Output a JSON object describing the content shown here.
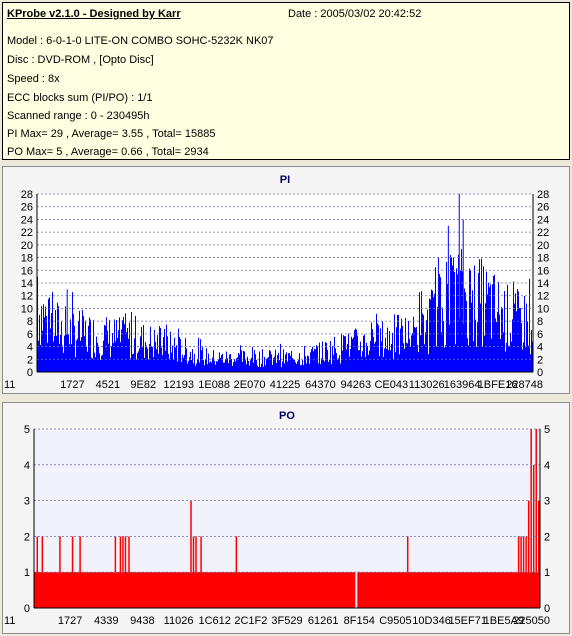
{
  "header": {
    "title": "KProbe v2.1.0 - Designed by Karr",
    "date": "Date : 2005/03/02 20:42:52",
    "lines": [
      "Model : 6-0-1-0 LITE-ON COMBO SOHC-5232K NK07",
      "Disc : DVD-ROM ,  [Opto Disc]",
      "Speed : 8x",
      "ECC blocks sum (PI/PO) : 1/1",
      "Scanned range : 0 - 230495h",
      "PI Max= 29 , Average= 3.55 , Total= 15885",
      "PO Max= 5 , Average= 0.66 , Total= 2934"
    ]
  },
  "colors": {
    "pi": "#0000ff",
    "po": "#ff0000",
    "grid": "#6f6fb0",
    "plot_bg_pi": "#ffffff",
    "plot_bg_po": "#f2f2fa"
  },
  "chart_data": [
    {
      "type": "bar",
      "title": "PI",
      "ylim": [
        0,
        28
      ],
      "yticks": [
        0,
        2,
        4,
        6,
        8,
        10,
        12,
        14,
        16,
        18,
        20,
        22,
        24,
        26,
        28
      ],
      "xticks": [
        "11",
        "1727",
        "4521",
        "9E82",
        "12193",
        "1E088",
        "2E070",
        "41225",
        "64370",
        "94263",
        "CE043",
        "113026",
        "163964",
        "1BFE16",
        "228748"
      ],
      "grid": true,
      "series": [
        {
          "envelope_x": [
            0,
            0.02,
            0.05,
            0.1,
            0.15,
            0.2,
            0.25,
            0.3,
            0.35,
            0.4,
            0.45,
            0.5,
            0.55,
            0.6,
            0.65,
            0.7,
            0.75,
            0.78,
            0.8,
            0.83,
            0.85,
            0.87,
            0.9,
            0.93,
            0.96,
            1.0
          ],
          "envelope_y": [
            14,
            11,
            9,
            8,
            7.5,
            7,
            6,
            4.5,
            3,
            3,
            3,
            3,
            3.5,
            5,
            6,
            7,
            8,
            9,
            12,
            15,
            17,
            16,
            15,
            13,
            11,
            11
          ],
          "spikes": [
            {
              "x": 0.0,
              "y": 15
            },
            {
              "x": 0.06,
              "y": 13
            },
            {
              "x": 0.83,
              "y": 23
            },
            {
              "x": 0.852,
              "y": 28.5
            },
            {
              "x": 0.86,
              "y": 24
            },
            {
              "x": 0.81,
              "y": 18
            }
          ]
        }
      ]
    },
    {
      "type": "bar",
      "title": "PO",
      "ylim": [
        0,
        5
      ],
      "yticks": [
        0,
        1,
        2,
        3,
        4,
        5
      ],
      "xticks": [
        "11",
        "1727",
        "4339",
        "9438",
        "11026",
        "1C612",
        "2C1F2",
        "3F529",
        "61261",
        "8F154",
        "C9505",
        "10D346",
        "15EF71",
        "1BE5A9",
        "225050"
      ],
      "grid": true,
      "series": [
        {
          "base": 1,
          "gap_x": 0.635,
          "spikes": [
            {
              "x": 0.005,
              "y": 2
            },
            {
              "x": 0.015,
              "y": 2
            },
            {
              "x": 0.05,
              "y": 2
            },
            {
              "x": 0.075,
              "y": 2
            },
            {
              "x": 0.09,
              "y": 2
            },
            {
              "x": 0.16,
              "y": 2
            },
            {
              "x": 0.17,
              "y": 2
            },
            {
              "x": 0.175,
              "y": 2
            },
            {
              "x": 0.18,
              "y": 2
            },
            {
              "x": 0.187,
              "y": 2
            },
            {
              "x": 0.31,
              "y": 3
            },
            {
              "x": 0.315,
              "y": 2
            },
            {
              "x": 0.32,
              "y": 2
            },
            {
              "x": 0.33,
              "y": 2
            },
            {
              "x": 0.4,
              "y": 2
            },
            {
              "x": 0.74,
              "y": 2
            },
            {
              "x": 0.96,
              "y": 2
            },
            {
              "x": 0.965,
              "y": 2
            },
            {
              "x": 0.97,
              "y": 2
            },
            {
              "x": 0.975,
              "y": 2
            },
            {
              "x": 0.98,
              "y": 3
            },
            {
              "x": 0.985,
              "y": 5
            },
            {
              "x": 0.99,
              "y": 4
            },
            {
              "x": 0.995,
              "y": 5
            },
            {
              "x": 1.0,
              "y": 3
            }
          ]
        }
      ]
    }
  ]
}
